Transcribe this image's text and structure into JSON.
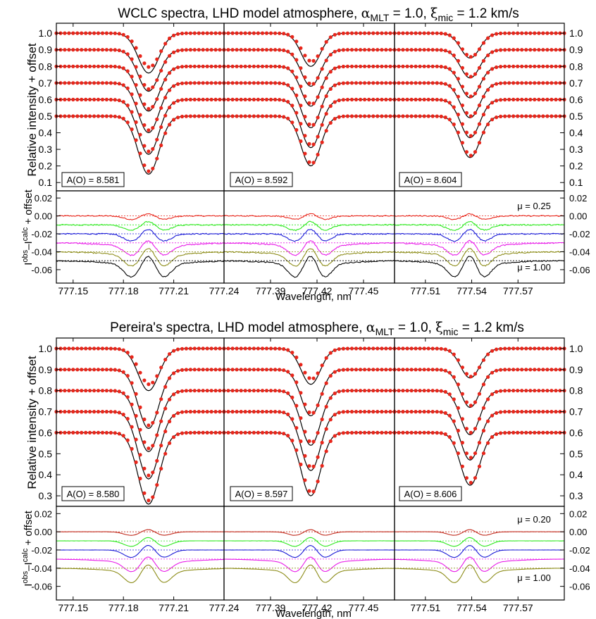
{
  "figures": [
    {
      "title_main": "WCLC spectra, LHD model atmosphere, ",
      "alpha_sym": "α",
      "alpha_sub": "MLT",
      "alpha_val": " = 1.0, ",
      "xi_sym": "ξ",
      "xi_sub": "mic",
      "xi_val": " = 1.2 km/s",
      "ylabel_top": "Relative intensity + offset",
      "ylabel_bottom_main": "I",
      "ylabel_bottom_sup1": "obs",
      "ylabel_bottom_mid": "–I",
      "ylabel_bottom_sup2": "calc",
      "ylabel_bottom_rest": " + offset",
      "xlabel": "Wavelength, nm",
      "mu_top": "μ = 0.25",
      "mu_bottom": "μ = 1.00",
      "abundances": [
        "A(O) = 8.581",
        "A(O) = 8.592",
        "A(O) = 8.604"
      ]
    },
    {
      "title_main": "Pereira's spectra, LHD model atmosphere, ",
      "alpha_sym": "α",
      "alpha_sub": "MLT",
      "alpha_val": " = 1.0, ",
      "xi_sym": "ξ",
      "xi_sub": "mic",
      "xi_val": " = 1.2 km/s",
      "ylabel_top": "Relative intensity + offset",
      "ylabel_bottom_main": "I",
      "ylabel_bottom_sup1": "obs",
      "ylabel_bottom_mid": "–I",
      "ylabel_bottom_sup2": "calc",
      "ylabel_bottom_rest": " + offset",
      "xlabel": "Wavelength, nm",
      "mu_top": "μ = 0.20",
      "mu_bottom": "μ = 1.00",
      "abundances": [
        "A(O) = 8.580",
        "A(O) = 8.597",
        "A(O) = 8.606"
      ]
    }
  ],
  "chart_data": [
    {
      "type": "line",
      "title": "WCLC spectra, LHD model atmosphere, αMLT = 1.0, ξmic = 1.2 km/s",
      "ylabel": "Relative intensity + offset",
      "ylim": [
        0.05,
        1.06
      ],
      "yticks": [
        "0.1",
        "0.2",
        "0.3",
        "0.4",
        "0.5",
        "0.6",
        "0.7",
        "0.8",
        "0.9",
        "1.0"
      ],
      "offsets": [
        1.0,
        0.9,
        0.8,
        0.7,
        0.6,
        0.5
      ],
      "panels": [
        {
          "abundance": 8.581,
          "xlim": [
            777.14,
            777.24
          ],
          "xticks": [
            "777.15",
            "777.18",
            "777.21",
            "777.24"
          ],
          "line_center": 777.195,
          "depths": [
            0.24,
            0.25,
            0.27,
            0.3,
            0.33,
            0.35
          ]
        },
        {
          "abundance": 8.592,
          "xlim": [
            777.36,
            777.47
          ],
          "xticks": [
            "777.39",
            "777.42",
            "777.45"
          ],
          "line_center": 777.416,
          "depths": [
            0.2,
            0.22,
            0.24,
            0.27,
            0.29,
            0.3
          ]
        },
        {
          "abundance": 8.604,
          "xlim": [
            777.49,
            777.6
          ],
          "xticks": [
            "777.51",
            "777.54",
            "777.57"
          ],
          "line_center": 777.539,
          "depths": [
            0.15,
            0.17,
            0.19,
            0.21,
            0.23,
            0.25
          ]
        }
      ],
      "residuals": {
        "ylabel": "Iobs–Icalc + offset",
        "ylim": [
          -0.075,
          0.028
        ],
        "yticks": [
          "0.02",
          "0.00",
          "-0.02",
          "-0.04",
          "-0.06"
        ],
        "series": [
          {
            "name": "μ = 0.25",
            "offset": 0.0,
            "color": "#e8261b"
          },
          {
            "name": "",
            "offset": -0.01,
            "color": "#2be81b"
          },
          {
            "name": "",
            "offset": -0.02,
            "color": "#1a1ad6"
          },
          {
            "name": "",
            "offset": -0.03,
            "color": "#e81be8"
          },
          {
            "name": "",
            "offset": -0.04,
            "color": "#8c8c18"
          },
          {
            "name": "μ = 1.00",
            "offset": -0.05,
            "color": "#000000"
          }
        ],
        "xlabel": "Wavelength, nm"
      }
    },
    {
      "type": "line",
      "title": "Pereira's spectra, LHD model atmosphere, αMLT = 1.0, ξmic = 1.2 km/s",
      "ylabel": "Relative intensity + offset",
      "ylim": [
        0.25,
        1.05
      ],
      "yticks": [
        "0.3",
        "0.4",
        "0.5",
        "0.6",
        "0.7",
        "0.8",
        "0.9",
        "1.0"
      ],
      "offsets": [
        1.0,
        0.9,
        0.8,
        0.7,
        0.6
      ],
      "panels": [
        {
          "abundance": 8.58,
          "xlim": [
            777.14,
            777.24
          ],
          "xticks": [
            "777.15",
            "777.18",
            "777.21",
            "777.24"
          ],
          "line_center": 777.195,
          "depths": [
            0.2,
            0.28,
            0.29,
            0.32,
            0.34
          ]
        },
        {
          "abundance": 8.597,
          "xlim": [
            777.36,
            777.47
          ],
          "xticks": [
            "777.39",
            "777.42",
            "777.45"
          ],
          "line_center": 777.416,
          "depths": [
            0.17,
            0.22,
            0.26,
            0.28,
            0.3
          ]
        },
        {
          "abundance": 8.606,
          "xlim": [
            777.49,
            777.6
          ],
          "xticks": [
            "777.51",
            "777.54",
            "777.57"
          ],
          "line_center": 777.539,
          "depths": [
            0.14,
            0.18,
            0.21,
            0.23,
            0.25
          ]
        }
      ],
      "residuals": {
        "ylabel": "Iobs–Icalc + offset",
        "ylim": [
          -0.075,
          0.028
        ],
        "yticks": [
          "0.02",
          "0.00",
          "-0.02",
          "-0.04",
          "-0.06"
        ],
        "series": [
          {
            "name": "μ = 0.20",
            "offset": 0.0,
            "color": "#c0281a"
          },
          {
            "name": "",
            "offset": -0.01,
            "color": "#2be81b"
          },
          {
            "name": "",
            "offset": -0.02,
            "color": "#1a1ad6"
          },
          {
            "name": "",
            "offset": -0.03,
            "color": "#e81be8"
          },
          {
            "name": "μ = 1.00",
            "offset": -0.04,
            "color": "#8c8c18"
          }
        ],
        "xlabel": "Wavelength, nm"
      }
    }
  ]
}
